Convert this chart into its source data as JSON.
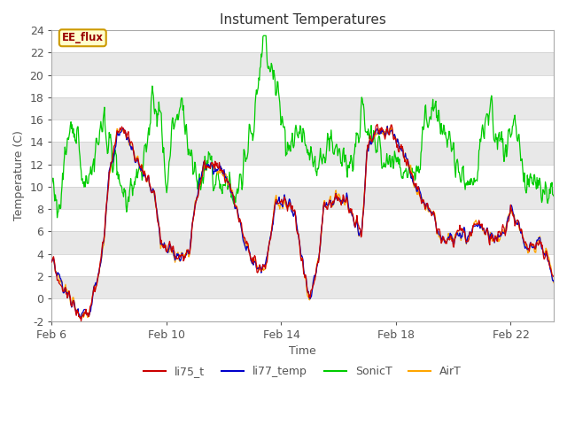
{
  "title": "Instument Temperatures",
  "xlabel": "Time",
  "ylabel": "Temperature (C)",
  "ylim": [
    -2,
    24
  ],
  "xlim_days": [
    0,
    17.5
  ],
  "x_ticks_labels": [
    "Feb 6",
    "Feb 10",
    "Feb 14",
    "Feb 18",
    "Feb 22"
  ],
  "x_ticks_positions": [
    0,
    4,
    8,
    12,
    16
  ],
  "series_colors": {
    "li75_t": "#cc0000",
    "li77_temp": "#0000cc",
    "SonicT": "#00cc00",
    "AirT": "#ffa500"
  },
  "annotation_text": "EE_flux",
  "annotation_bg": "#ffffcc",
  "annotation_border": "#cc9900",
  "annotation_text_color": "#990000",
  "plot_bg_color": "#e8e8e8",
  "band_color_light": "#d8d8d8",
  "band_color_white": "#e8e8e8",
  "grid_color": "#ffffff",
  "title_color": "#333333",
  "axis_label_color": "#555555",
  "tick_label_color": "#555555"
}
